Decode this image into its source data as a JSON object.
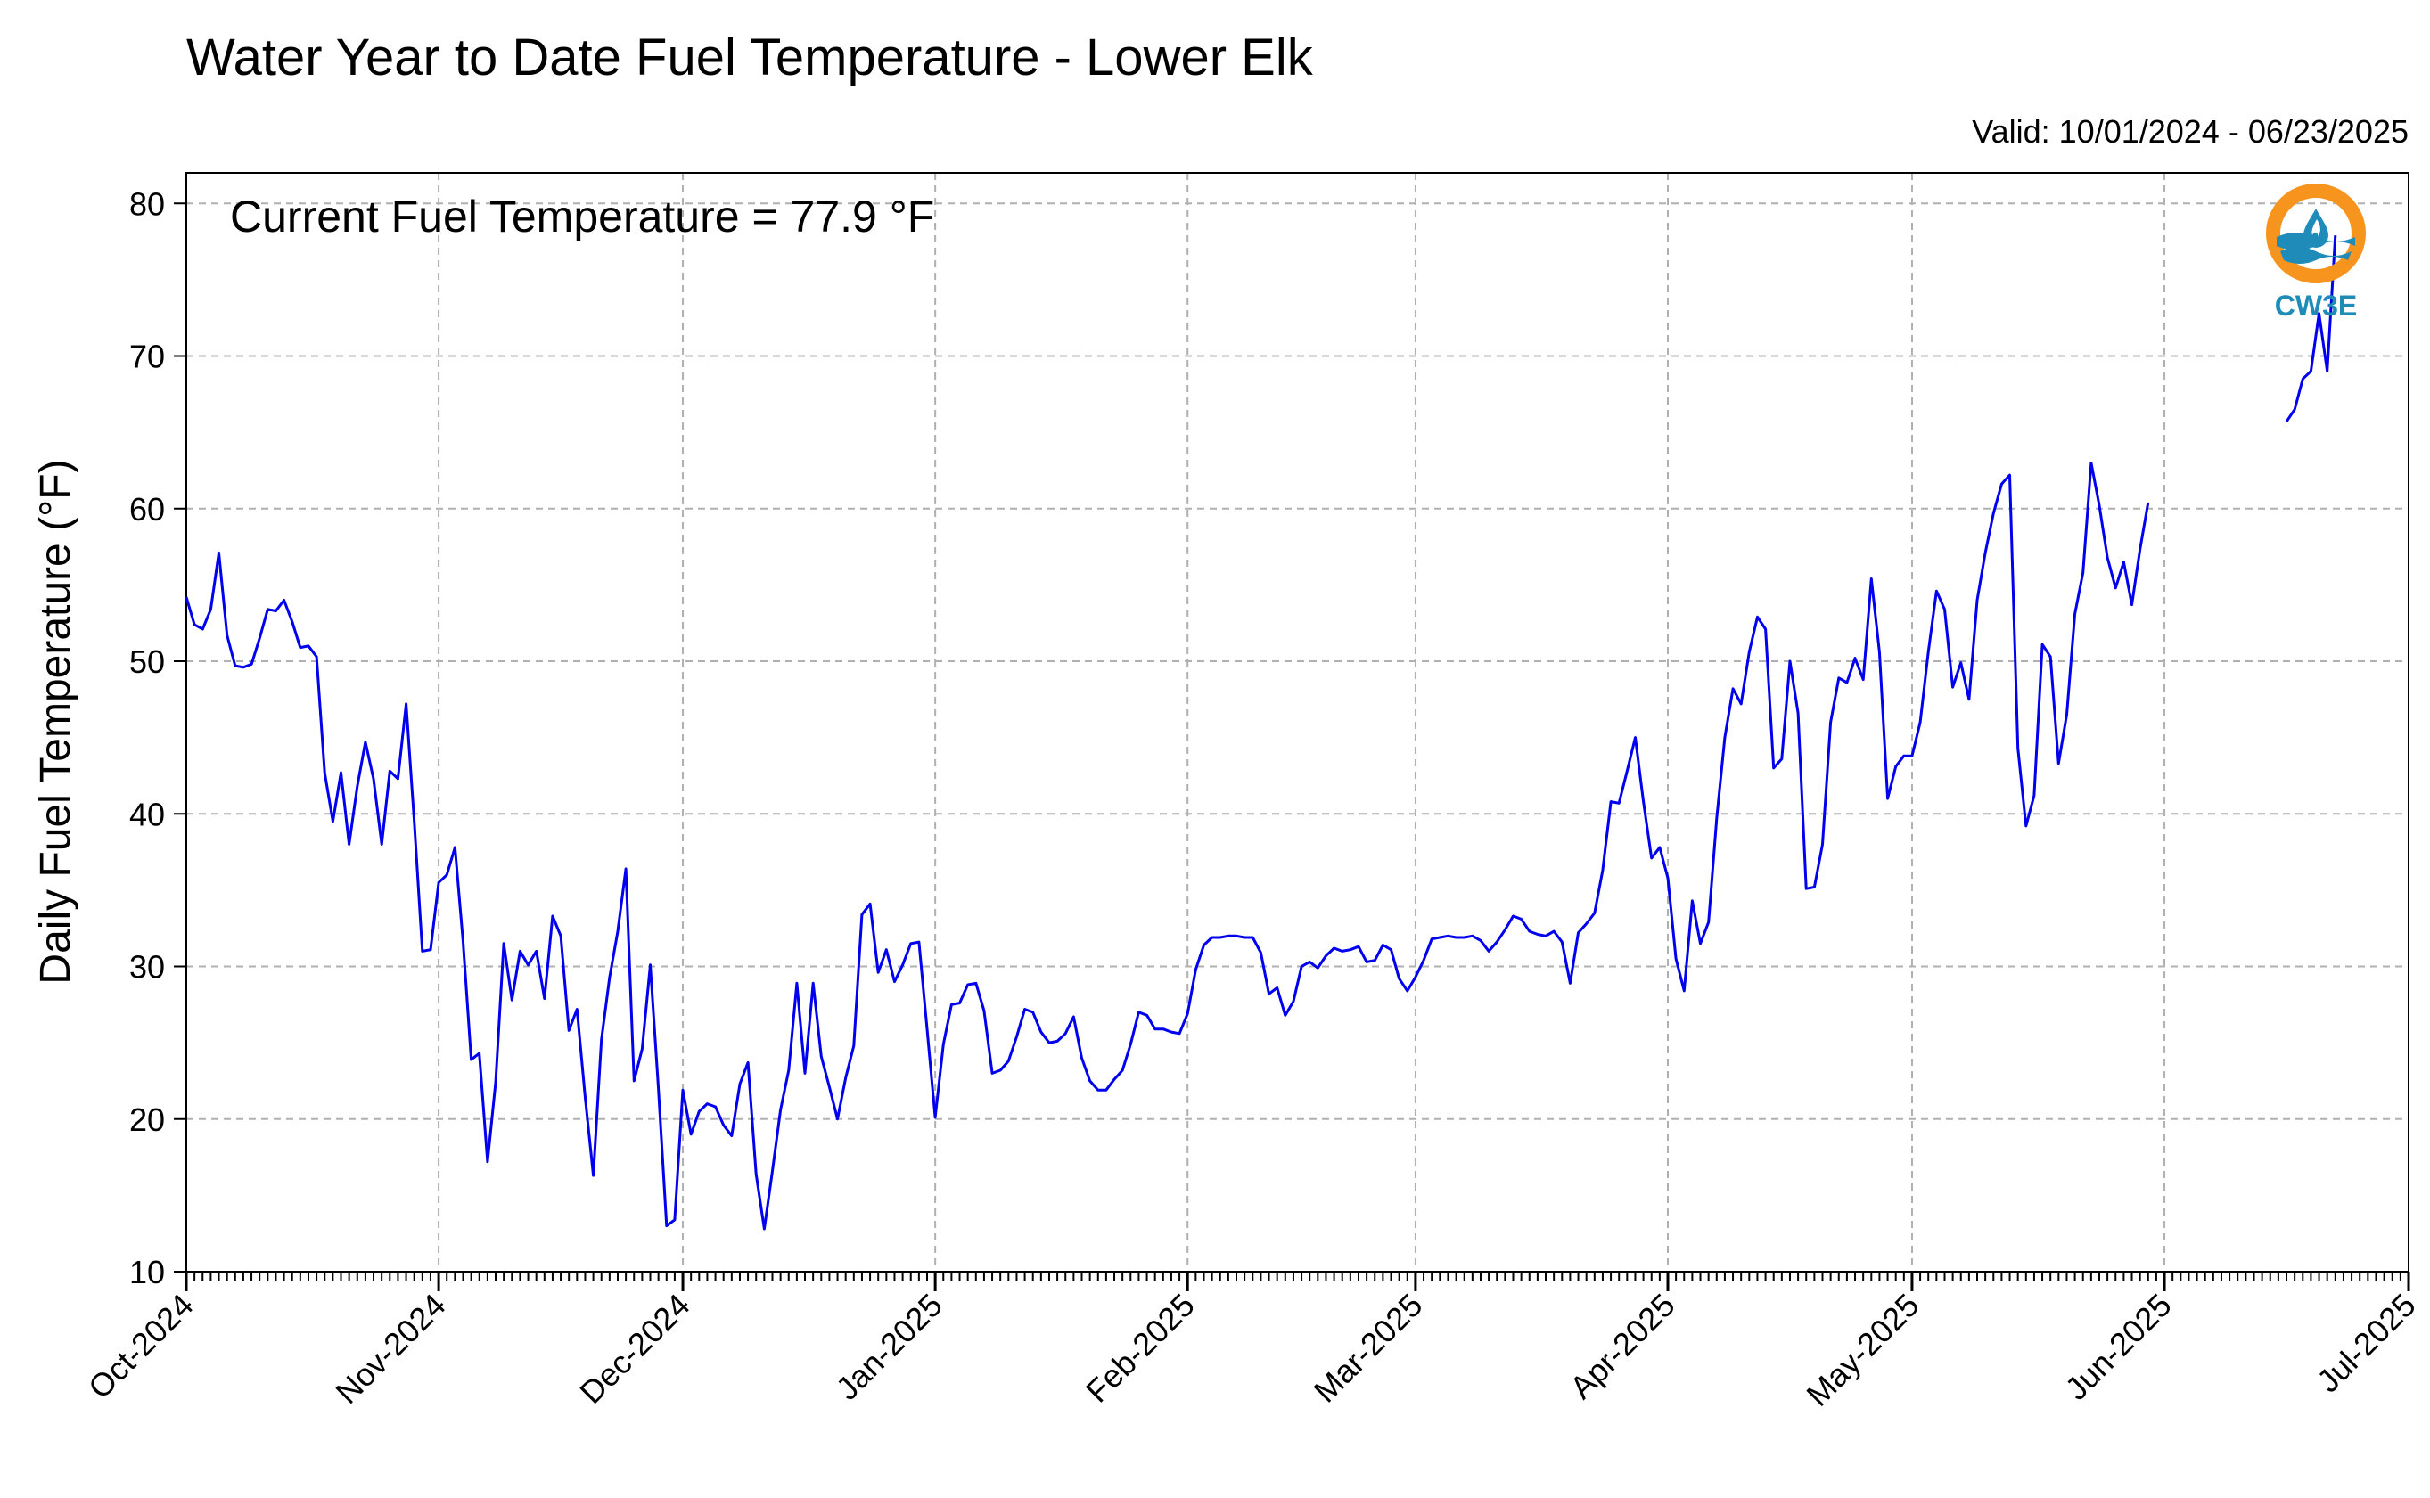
{
  "chart_data": {
    "type": "line",
    "title": "Water Year to Date Fuel Temperature - Lower Elk",
    "subtitle": "Valid: 10/01/2024 - 06/23/2025",
    "annotation": "Current Fuel Temperature = 77.9 °F",
    "xlabel": "",
    "ylabel": "Daily Fuel Temperature (°F)",
    "ylim": [
      10,
      82
    ],
    "yticks": [
      10,
      20,
      30,
      40,
      50,
      60,
      70,
      80
    ],
    "xlim": [
      "2024-10-01",
      "2025-07-01"
    ],
    "xtick_labels": [
      "Oct-2024",
      "Nov-2024",
      "Dec-2024",
      "Jan-2025",
      "Feb-2025",
      "Mar-2025",
      "Apr-2025",
      "May-2025",
      "Jun-2025",
      "Jul-2025"
    ],
    "xtick_dates": [
      "2024-10-01",
      "2024-11-01",
      "2024-12-01",
      "2025-01-01",
      "2025-02-01",
      "2025-03-01",
      "2025-04-01",
      "2025-05-01",
      "2025-06-01",
      "2025-07-01"
    ],
    "grid": true,
    "line_color": "#0000ee",
    "series": [
      {
        "segments": [
          {
            "start_date": "2024-10-01",
            "values": [
              54.2,
              52.4,
              52.1,
              53.4,
              57.1,
              51.7,
              49.7,
              49.6,
              49.8,
              51.5,
              53.4,
              53.3,
              54.0,
              52.6,
              50.9,
              51.0,
              50.3,
              42.7,
              39.5,
              42.7,
              38.0,
              41.8,
              44.7,
              42.3,
              38.0,
              42.8,
              42.3,
              47.2,
              39.5,
              31.0,
              31.1,
              35.5,
              36.0,
              37.8,
              31.6,
              23.9,
              24.3,
              17.2,
              22.4,
              31.5,
              27.8,
              31.0,
              30.1,
              31.0,
              27.9,
              33.3,
              32.0,
              25.8,
              27.2,
              21.4,
              16.3,
              25.2,
              29.3,
              32.3,
              36.4,
              22.5,
              24.6,
              30.1,
              22.0,
              13.0,
              13.4,
              21.9,
              19.0,
              20.5,
              21.0,
              20.8,
              19.6,
              18.9,
              22.3,
              23.7,
              16.4,
              12.8,
              16.6,
              20.6,
              23.2,
              28.9,
              23.0,
              28.9,
              24.1,
              22.1,
              20.0,
              22.7,
              24.8,
              33.4,
              34.1,
              29.6,
              31.1,
              29.0,
              30.1,
              31.5,
              31.6,
              25.9,
              20.1,
              24.9,
              27.5,
              27.6,
              28.8,
              28.9,
              27.1,
              23.0,
              23.2,
              23.8,
              25.4,
              27.2,
              27.0,
              25.7,
              25.0,
              25.1,
              25.6,
              26.7,
              24.0,
              22.5,
              21.9,
              21.9,
              22.6,
              23.2,
              24.9,
              27.0,
              26.8,
              25.9,
              25.9,
              25.7,
              25.6,
              26.9,
              29.8,
              31.4,
              31.9,
              31.9,
              32.0,
              32.0,
              31.9,
              31.9,
              30.9,
              28.2,
              28.6,
              26.8,
              27.7,
              30.0,
              30.3,
              29.9,
              30.7,
              31.2,
              31.0,
              31.1,
              31.3,
              30.3,
              30.4,
              31.4,
              31.1,
              29.2,
              28.4,
              29.3,
              30.4,
              31.8,
              31.9,
              32.0,
              31.9,
              31.9,
              32.0,
              31.7,
              31.0,
              31.6,
              32.4,
              33.3,
              33.1,
              32.3,
              32.1,
              32.0,
              32.3,
              31.6,
              28.9,
              32.2,
              32.8,
              33.5,
              36.3,
              40.8,
              40.7,
              42.8,
              45.0,
              40.8,
              37.1,
              37.8,
              35.8,
              30.5,
              28.4,
              34.3,
              31.5,
              32.9,
              39.7,
              45.0,
              48.2,
              47.2,
              50.6,
              52.9,
              52.1,
              43.0,
              43.6,
              50.0,
              46.6,
              35.1,
              35.2,
              38.0,
              46.0,
              48.9,
              48.6,
              50.2,
              48.8,
              55.4,
              50.6,
              41.0,
              43.1,
              43.8,
              43.8,
              46.0,
              50.6,
              54.6,
              53.4,
              48.3,
              49.9,
              47.5,
              54.0,
              57.1,
              59.7,
              61.6,
              62.2,
              44.3,
              39.2,
              41.2,
              51.1,
              50.3,
              43.3,
              46.5,
              53.1,
              55.8,
              63.0,
              60.2,
              56.8,
              54.8,
              56.5,
              53.7,
              57.3,
              60.4
            ]
          },
          {
            "start_date": "2025-06-16",
            "values": [
              65.7,
              66.5,
              68.5,
              69.0,
              72.8,
              69.0,
              77.9
            ]
          }
        ]
      }
    ]
  },
  "logo": {
    "text": "CW3E",
    "ring_color": "#f7941d",
    "wave_color": "#1f8bb8"
  }
}
